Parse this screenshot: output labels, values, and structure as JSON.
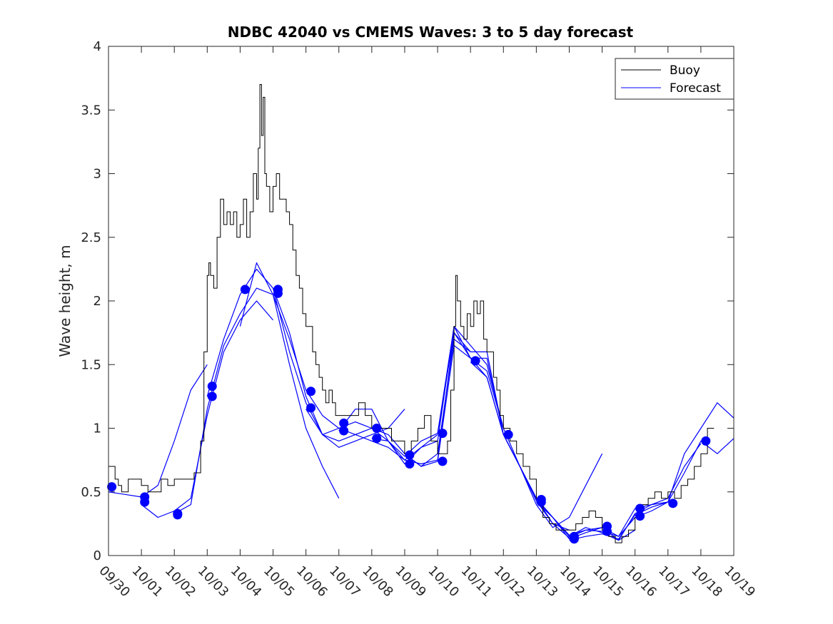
{
  "chart_data": {
    "type": "line",
    "title": "NDBC 42040 vs CMEMS Waves: 3 to 5 day forecast",
    "xlabel": "",
    "ylabel": "Wave height, m",
    "x_unit": "days since 09/30",
    "xlim": [
      0,
      19
    ],
    "ylim": [
      0,
      4
    ],
    "yticks": [
      0,
      0.5,
      1,
      1.5,
      2,
      2.5,
      3,
      3.5,
      4
    ],
    "ytick_labels": [
      "0",
      "0.5",
      "1",
      "1.5",
      "2",
      "2.5",
      "3",
      "3.5",
      "4"
    ],
    "xtick_labels": [
      "09/30",
      "10/01",
      "10/02",
      "10/03",
      "10/04",
      "10/05",
      "10/06",
      "10/07",
      "10/08",
      "10/09",
      "10/10",
      "10/11",
      "10/12",
      "10/13",
      "10/14",
      "10/15",
      "10/16",
      "10/17",
      "10/18",
      "10/19"
    ],
    "legend": {
      "position": "top-right",
      "entries": [
        {
          "name": "Buoy",
          "color": "#000000"
        },
        {
          "name": "Forecast",
          "color": "#0000ff"
        }
      ]
    },
    "colors": {
      "buoy": "#000000",
      "forecast": "#0000ff",
      "axis": "#262626"
    },
    "buoy": {
      "name": "Buoy",
      "x": [
        0,
        0.2,
        0.3,
        0.4,
        0.6,
        0.8,
        1.0,
        1.2,
        1.4,
        1.6,
        1.8,
        2.0,
        2.2,
        2.4,
        2.6,
        2.8,
        2.9,
        3.0,
        3.05,
        3.1,
        3.2,
        3.3,
        3.4,
        3.5,
        3.6,
        3.7,
        3.8,
        3.9,
        4.0,
        4.1,
        4.2,
        4.3,
        4.4,
        4.5,
        4.55,
        4.6,
        4.65,
        4.7,
        4.75,
        4.8,
        4.9,
        5.0,
        5.1,
        5.2,
        5.3,
        5.4,
        5.5,
        5.6,
        5.7,
        5.8,
        5.9,
        6.0,
        6.1,
        6.2,
        6.3,
        6.4,
        6.5,
        6.6,
        6.7,
        6.8,
        6.9,
        7.0,
        7.2,
        7.4,
        7.6,
        7.8,
        8.0,
        8.2,
        8.4,
        8.6,
        8.8,
        9.0,
        9.2,
        9.4,
        9.6,
        9.8,
        10.0,
        10.2,
        10.3,
        10.4,
        10.5,
        10.55,
        10.6,
        10.7,
        10.8,
        10.9,
        11.0,
        11.1,
        11.2,
        11.3,
        11.4,
        11.5,
        11.6,
        11.7,
        11.8,
        11.9,
        12.0,
        12.2,
        12.4,
        12.6,
        12.8,
        13.0,
        13.2,
        13.4,
        13.6,
        13.8,
        14.0,
        14.2,
        14.4,
        14.6,
        14.8,
        15.0,
        15.2,
        15.4,
        15.6,
        15.8,
        16.0,
        16.2,
        16.4,
        16.6,
        16.8,
        17.0,
        17.2,
        17.4,
        17.6,
        17.8,
        18.0,
        18.2,
        18.4
      ],
      "y": [
        0.7,
        0.6,
        0.55,
        0.5,
        0.6,
        0.6,
        0.55,
        0.5,
        0.5,
        0.6,
        0.55,
        0.6,
        0.6,
        0.6,
        0.65,
        0.9,
        1.6,
        2.2,
        2.3,
        2.2,
        2.1,
        2.5,
        2.8,
        2.6,
        2.7,
        2.6,
        2.7,
        2.5,
        2.6,
        2.8,
        2.5,
        2.7,
        3.0,
        2.8,
        3.2,
        3.7,
        3.3,
        3.6,
        3.0,
        2.9,
        2.7,
        2.9,
        3.0,
        2.8,
        2.8,
        2.7,
        2.6,
        2.4,
        2.2,
        2.1,
        1.9,
        1.8,
        1.8,
        1.6,
        1.5,
        1.4,
        1.3,
        1.2,
        1.3,
        1.2,
        1.1,
        1.1,
        1.1,
        1.1,
        1.2,
        1.1,
        1.0,
        1.0,
        1.0,
        0.9,
        0.9,
        0.8,
        0.9,
        1.0,
        1.1,
        0.9,
        0.8,
        0.8,
        0.9,
        1.3,
        1.8,
        2.2,
        2.0,
        1.8,
        1.7,
        1.9,
        1.8,
        2.0,
        1.9,
        2.0,
        1.7,
        1.6,
        1.6,
        1.4,
        1.3,
        1.1,
        1.0,
        0.9,
        0.8,
        0.7,
        0.6,
        0.45,
        0.3,
        0.25,
        0.2,
        0.2,
        0.2,
        0.25,
        0.3,
        0.35,
        0.3,
        0.2,
        0.15,
        0.1,
        0.15,
        0.2,
        0.3,
        0.4,
        0.45,
        0.5,
        0.45,
        0.5,
        0.45,
        0.55,
        0.6,
        0.7,
        0.8,
        1.0,
        1.0
      ],
      "step": true
    },
    "forecast_series": [
      {
        "name": "Forecast 1",
        "x": [
          0,
          0.5,
          1.0,
          1.5,
          2.0,
          2.5,
          3.0
        ],
        "y": [
          0.5,
          0.48,
          0.46,
          0.55,
          0.9,
          1.3,
          1.5
        ]
      },
      {
        "name": "Forecast 2",
        "x": [
          1.0,
          1.5,
          2.0,
          2.5,
          3.0,
          3.5,
          4.0,
          4.5,
          5.0
        ],
        "y": [
          0.4,
          0.3,
          0.35,
          0.45,
          1.1,
          1.6,
          1.85,
          2.0,
          1.85
        ]
      },
      {
        "name": "Forecast 3",
        "x": [
          2.0,
          2.5,
          3.0,
          3.5,
          4.0,
          4.5,
          5.0,
          5.5,
          6.0,
          6.5,
          7.0
        ],
        "y": [
          0.33,
          0.4,
          1.15,
          1.65,
          1.9,
          2.1,
          2.05,
          1.5,
          1.0,
          0.7,
          0.45
        ]
      },
      {
        "name": "Forecast 4",
        "x": [
          3.0,
          3.5,
          4.0,
          4.5,
          5.0,
          5.5,
          6.0,
          6.5,
          7.0,
          7.5,
          8.0,
          8.5,
          9.0
        ],
        "y": [
          1.25,
          1.7,
          2.05,
          2.25,
          2.1,
          1.6,
          1.2,
          0.95,
          0.85,
          0.9,
          0.95,
          1.0,
          1.15
        ]
      },
      {
        "name": "Forecast 5",
        "x": [
          4.0,
          4.5,
          5.0,
          5.5,
          6.0,
          6.5,
          7.0,
          7.5,
          8.0,
          8.5,
          9.0,
          9.5,
          10.0
        ],
        "y": [
          1.8,
          2.3,
          2.05,
          1.7,
          1.3,
          1.1,
          1.0,
          0.95,
          0.9,
          0.85,
          0.75,
          0.85,
          0.95
        ]
      },
      {
        "name": "Forecast 6",
        "x": [
          5.0,
          5.5,
          6.0,
          6.5,
          7.0,
          7.5,
          8.0,
          8.5,
          9.0,
          9.5,
          10.0,
          10.5,
          11.0
        ],
        "y": [
          2.1,
          1.75,
          1.25,
          0.95,
          0.9,
          0.95,
          1.0,
          0.95,
          0.8,
          0.7,
          0.8,
          1.7,
          1.6
        ]
      },
      {
        "name": "Forecast 7",
        "x": [
          6.0,
          6.5,
          7.0,
          7.5,
          8.0,
          8.5,
          9.0,
          9.5,
          10.0,
          10.5,
          11.0,
          11.5,
          12.0
        ],
        "y": [
          1.15,
          0.95,
          1.0,
          1.05,
          1.0,
          0.9,
          0.75,
          0.72,
          0.75,
          1.75,
          1.55,
          1.45,
          1.0
        ]
      },
      {
        "name": "Forecast 8",
        "x": [
          7.0,
          7.5,
          8.0,
          8.5,
          9.0,
          9.5,
          10.0,
          10.5,
          11.0,
          11.5,
          12.0,
          12.5,
          13.0
        ],
        "y": [
          0.98,
          1.15,
          1.15,
          0.9,
          0.72,
          0.85,
          0.9,
          1.8,
          1.65,
          1.5,
          1.0,
          0.7,
          0.45
        ]
      },
      {
        "name": "Forecast 9",
        "x": [
          8.0,
          8.5,
          9.0,
          9.5,
          10.0,
          10.5,
          11.0,
          11.5,
          12.0,
          12.5,
          13.0,
          13.5,
          14.0
        ],
        "y": [
          0.92,
          0.9,
          0.78,
          0.9,
          0.96,
          1.75,
          1.6,
          1.6,
          0.95,
          0.7,
          0.45,
          0.25,
          0.2
        ]
      },
      {
        "name": "Forecast 10",
        "x": [
          9.0,
          9.5,
          10.0,
          10.5,
          11.0,
          11.5,
          12.0,
          12.5,
          13.0,
          13.5,
          14.0,
          14.5,
          15.0
        ],
        "y": [
          0.8,
          0.7,
          0.74,
          1.65,
          1.55,
          1.55,
          0.95,
          0.7,
          0.4,
          0.22,
          0.3,
          0.55,
          0.8
        ]
      },
      {
        "name": "Forecast 11",
        "x": [
          10.0,
          10.5,
          11.0,
          11.5,
          12.0,
          12.5,
          13.0,
          13.5,
          14.0,
          14.5,
          15.0,
          15.5,
          16.0
        ],
        "y": [
          0.96,
          1.8,
          1.55,
          1.4,
          0.95,
          0.7,
          0.43,
          0.25,
          0.14,
          0.2,
          0.22,
          0.12,
          0.2
        ]
      },
      {
        "name": "Forecast 12",
        "x": [
          11.0,
          11.5,
          12.0,
          12.5,
          13.0,
          13.5,
          14.0,
          14.5,
          15.0,
          15.5,
          16.0,
          16.5,
          17.0
        ],
        "y": [
          1.52,
          1.4,
          0.95,
          0.7,
          0.44,
          0.3,
          0.16,
          0.2,
          0.19,
          0.15,
          0.3,
          0.35,
          0.42
        ]
      },
      {
        "name": "Forecast 13",
        "x": [
          12.0,
          12.5,
          13.0,
          13.5,
          14.0,
          14.5,
          15.0,
          15.5,
          16.0,
          16.5,
          17.0,
          17.5,
          18.0
        ],
        "y": [
          0.95,
          0.7,
          0.45,
          0.3,
          0.13,
          0.18,
          0.22,
          0.15,
          0.37,
          0.4,
          0.45,
          0.7,
          0.88
        ]
      },
      {
        "name": "Forecast 14",
        "x": [
          13.0,
          13.5,
          14.0,
          14.5,
          15.0,
          15.5,
          16.0,
          16.5,
          17.0,
          17.5,
          18.0,
          18.5,
          19.0
        ],
        "y": [
          0.42,
          0.3,
          0.15,
          0.22,
          0.18,
          0.12,
          0.33,
          0.4,
          0.42,
          0.65,
          0.9,
          0.8,
          0.92
        ]
      },
      {
        "name": "Forecast 15",
        "x": [
          14.0,
          14.5,
          15.0,
          15.5,
          16.0,
          16.5,
          17.0,
          17.5,
          18.0,
          18.5,
          19.0
        ],
        "y": [
          0.12,
          0.15,
          0.17,
          0.13,
          0.32,
          0.38,
          0.42,
          0.8,
          1.0,
          1.2,
          1.08
        ]
      }
    ],
    "forecast_markers": {
      "x": [
        0.1,
        1.1,
        1.1,
        2.1,
        2.1,
        3.15,
        3.15,
        4.15,
        5.15,
        5.15,
        6.15,
        6.15,
        7.15,
        7.15,
        8.15,
        8.15,
        9.15,
        9.15,
        10.15,
        10.15,
        11.15,
        12.15,
        13.15,
        13.15,
        14.15,
        14.15,
        15.15,
        15.15,
        16.15,
        16.15,
        17.15,
        18.15
      ],
      "y": [
        0.54,
        0.46,
        0.42,
        0.33,
        0.32,
        1.33,
        1.25,
        2.09,
        2.09,
        2.06,
        1.29,
        1.16,
        1.04,
        0.98,
        1.0,
        0.92,
        0.79,
        0.72,
        0.96,
        0.74,
        1.53,
        0.95,
        0.44,
        0.42,
        0.15,
        0.13,
        0.23,
        0.19,
        0.37,
        0.31,
        0.41,
        0.9
      ]
    }
  }
}
